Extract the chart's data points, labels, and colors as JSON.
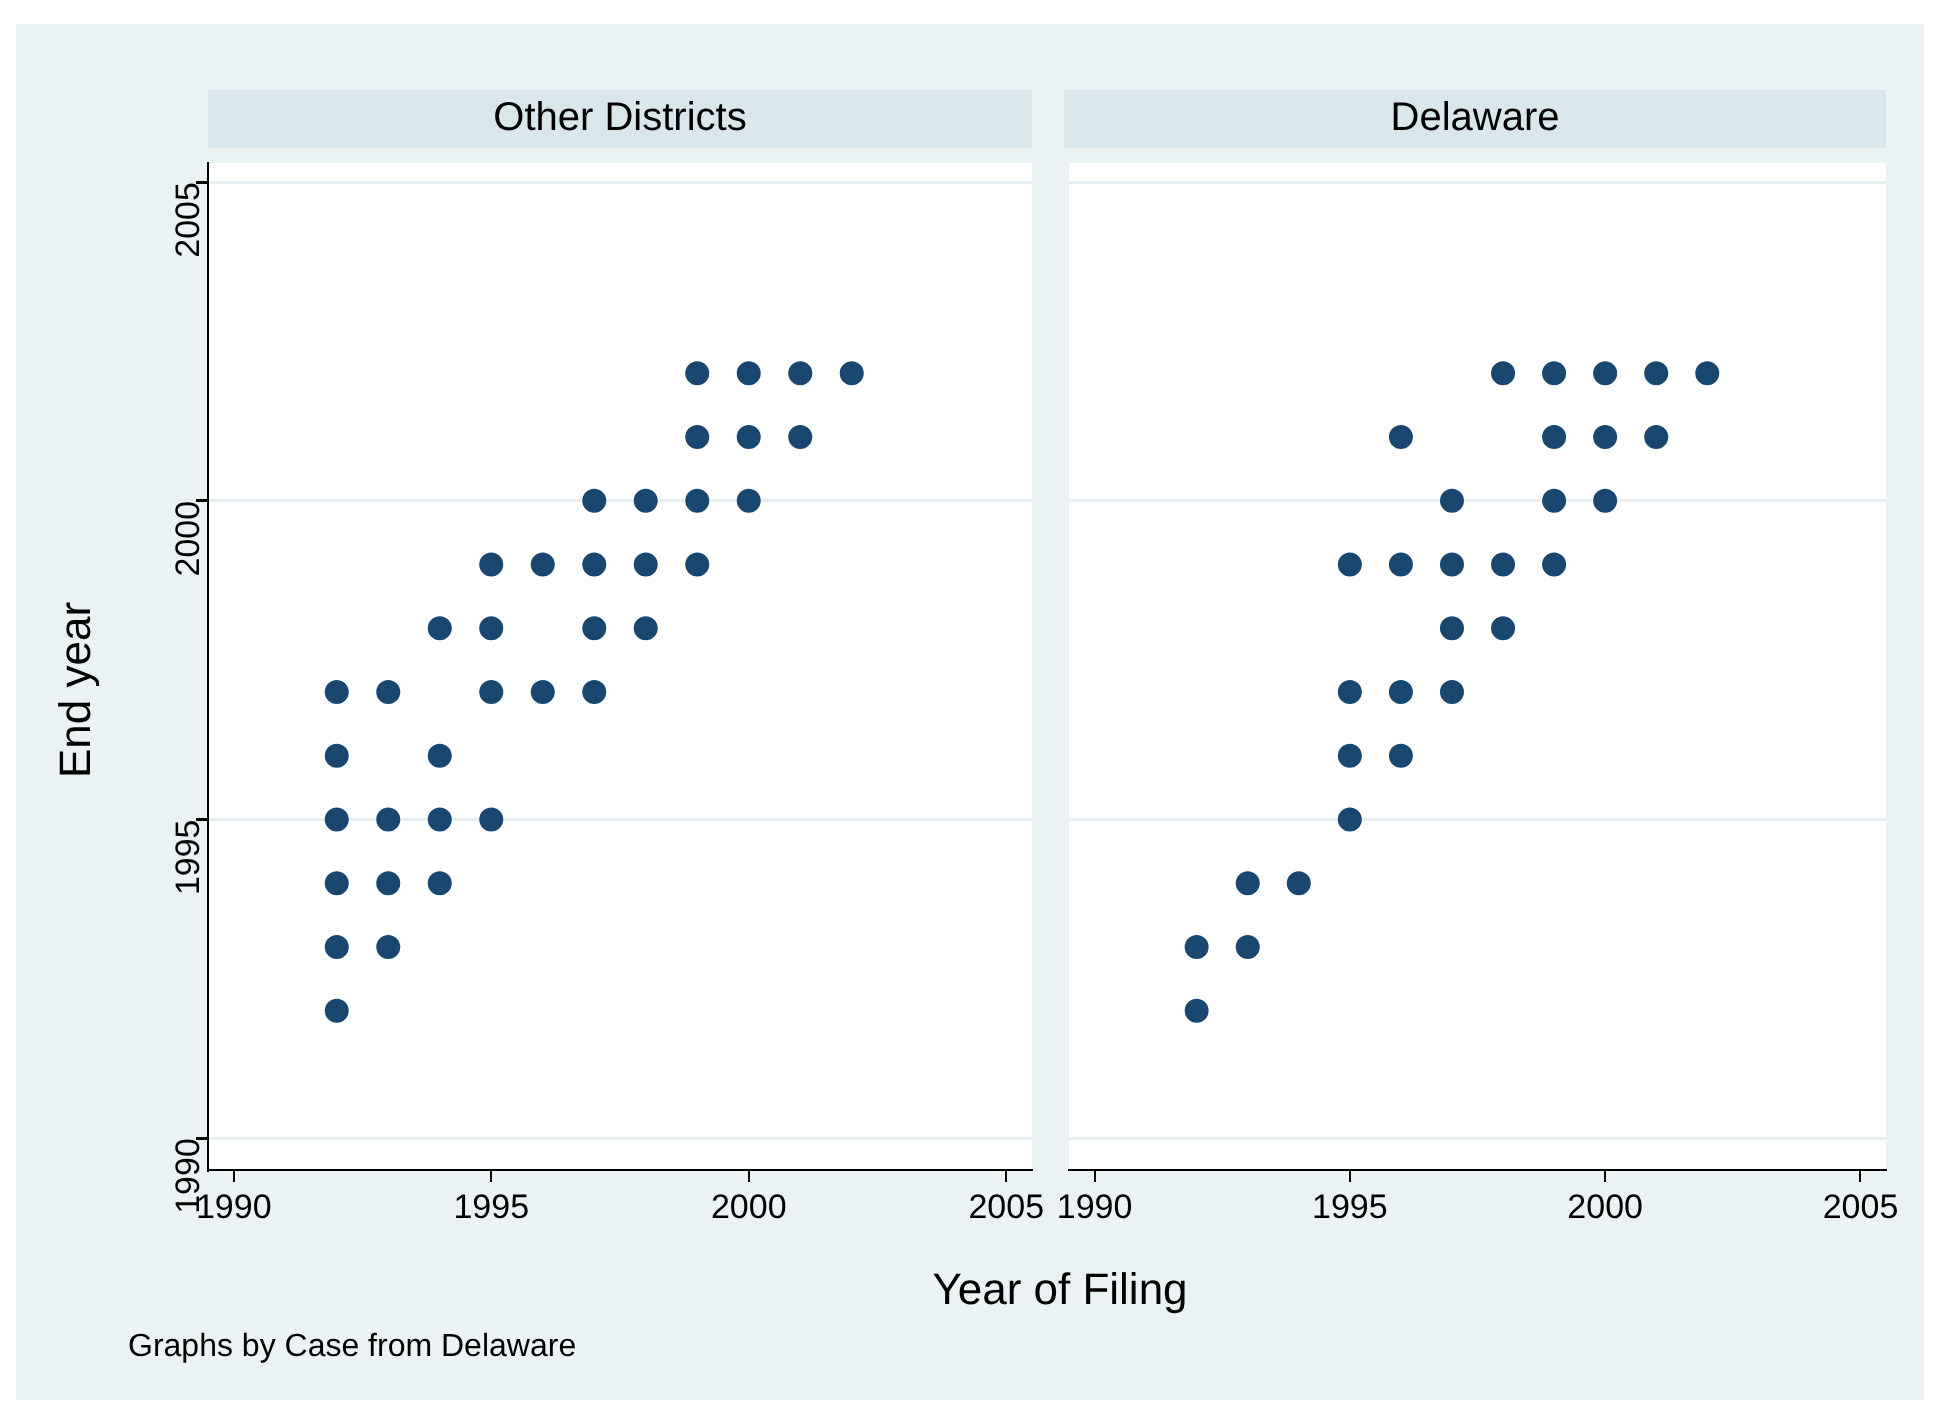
{
  "chart_data": [
    {
      "type": "scatter",
      "title": "Other Districts",
      "xlabel": "Year of Filing",
      "ylabel": "End year",
      "annotations": [
        "Graphs by Case from Delaware"
      ],
      "xlim": [
        1989.5,
        2005.5
      ],
      "xticks": [
        1990,
        1995,
        2000,
        2005
      ],
      "ylim": [
        1989.5,
        2005.3
      ],
      "yticks": [
        1990,
        1995,
        2000,
        2005
      ],
      "grid": "y",
      "marker": "circle",
      "legend": false,
      "series": [
        {
          "color": "#1a476f",
          "x": [
            1999,
            2000,
            2001,
            2002,
            1999,
            2000,
            2001,
            1997,
            1998,
            1999,
            2000,
            1995,
            1996,
            1997,
            1998,
            1999,
            1994,
            1995,
            1997,
            1998,
            1992,
            1993,
            1995,
            1996,
            1997,
            1992,
            1994,
            1992,
            1993,
            1994,
            1995,
            1992,
            1993,
            1994,
            1992,
            1993,
            1992
          ],
          "values": [
            2002,
            2002,
            2002,
            2002,
            2001,
            2001,
            2001,
            2000,
            2000,
            2000,
            2000,
            1999,
            1999,
            1999,
            1999,
            1999,
            1998,
            1998,
            1998,
            1998,
            1997,
            1997,
            1997,
            1997,
            1997,
            1996,
            1996,
            1995,
            1995,
            1995,
            1995,
            1994,
            1994,
            1994,
            1993,
            1993,
            1992
          ]
        }
      ]
    },
    {
      "type": "scatter",
      "title": "Delaware",
      "xlim": [
        1989.5,
        2005.5
      ],
      "xticks": [
        1990,
        1995,
        2000,
        2005
      ],
      "ylim": [
        1989.5,
        2005.3
      ],
      "yticks": [
        1990,
        1995,
        2000,
        2005
      ],
      "grid": "y",
      "marker": "circle",
      "legend": false,
      "tick_labels": "x",
      "series": [
        {
          "color": "#1a476f",
          "x": [
            1998,
            1999,
            2000,
            2001,
            2002,
            1996,
            1999,
            2000,
            2001,
            1997,
            1999,
            2000,
            1995,
            1996,
            1997,
            1998,
            1999,
            1997,
            1998,
            1995,
            1996,
            1997,
            1995,
            1996,
            1995,
            1993,
            1994,
            1992,
            1993,
            1992
          ],
          "values": [
            2002,
            2002,
            2002,
            2002,
            2002,
            2001,
            2001,
            2001,
            2001,
            2000,
            2000,
            2000,
            1999,
            1999,
            1999,
            1999,
            1999,
            1998,
            1998,
            1997,
            1997,
            1997,
            1996,
            1996,
            1995,
            1994,
            1994,
            1993,
            1993,
            1992
          ]
        }
      ]
    }
  ]
}
